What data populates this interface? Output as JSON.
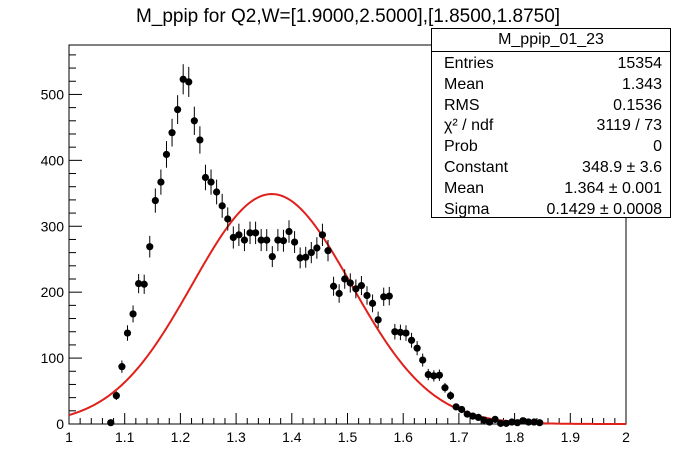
{
  "chart_data": {
    "type": "scatter",
    "title": "M_ppip for Q2,W=[1.9000,2.5000],[1.8500,1.8750]",
    "xlim": [
      1.0,
      2.0
    ],
    "ylim": [
      0,
      575
    ],
    "x_ticks": [
      "1",
      "1.1",
      "1.2",
      "1.3",
      "1.4",
      "1.5",
      "1.6",
      "1.7",
      "1.8",
      "1.9",
      "2"
    ],
    "y_ticks": [
      "0",
      "100",
      "200",
      "300",
      "400",
      "500"
    ],
    "points": [
      [
        1.075,
        2
      ],
      [
        1.085,
        43
      ],
      [
        1.095,
        87
      ],
      [
        1.105,
        138
      ],
      [
        1.115,
        167
      ],
      [
        1.125,
        213
      ],
      [
        1.135,
        212
      ],
      [
        1.145,
        269
      ],
      [
        1.155,
        339
      ],
      [
        1.165,
        367
      ],
      [
        1.175,
        409
      ],
      [
        1.185,
        442
      ],
      [
        1.195,
        477
      ],
      [
        1.205,
        523
      ],
      [
        1.215,
        519
      ],
      [
        1.225,
        460
      ],
      [
        1.235,
        431
      ],
      [
        1.245,
        374
      ],
      [
        1.255,
        367
      ],
      [
        1.265,
        352
      ],
      [
        1.275,
        331
      ],
      [
        1.285,
        311
      ],
      [
        1.295,
        283
      ],
      [
        1.305,
        287
      ],
      [
        1.315,
        279
      ],
      [
        1.325,
        290
      ],
      [
        1.335,
        290
      ],
      [
        1.345,
        279
      ],
      [
        1.355,
        279
      ],
      [
        1.365,
        254
      ],
      [
        1.375,
        279
      ],
      [
        1.385,
        278
      ],
      [
        1.395,
        292
      ],
      [
        1.405,
        276
      ],
      [
        1.415,
        252
      ],
      [
        1.425,
        253
      ],
      [
        1.435,
        260
      ],
      [
        1.445,
        267
      ],
      [
        1.455,
        287
      ],
      [
        1.465,
        263
      ],
      [
        1.475,
        209
      ],
      [
        1.485,
        198
      ],
      [
        1.495,
        220
      ],
      [
        1.505,
        214
      ],
      [
        1.515,
        205
      ],
      [
        1.525,
        210
      ],
      [
        1.535,
        195
      ],
      [
        1.545,
        183
      ],
      [
        1.555,
        158
      ],
      [
        1.565,
        193
      ],
      [
        1.575,
        194
      ],
      [
        1.585,
        140
      ],
      [
        1.595,
        139
      ],
      [
        1.605,
        138
      ],
      [
        1.615,
        127
      ],
      [
        1.625,
        115
      ],
      [
        1.635,
        97
      ],
      [
        1.645,
        75
      ],
      [
        1.655,
        73
      ],
      [
        1.665,
        74
      ],
      [
        1.675,
        55
      ],
      [
        1.685,
        43
      ],
      [
        1.695,
        26
      ],
      [
        1.705,
        22
      ],
      [
        1.715,
        15
      ],
      [
        1.725,
        12
      ],
      [
        1.735,
        10
      ],
      [
        1.745,
        6
      ],
      [
        1.755,
        3
      ],
      [
        1.765,
        7
      ],
      [
        1.775,
        1
      ],
      [
        1.785,
        1
      ],
      [
        1.795,
        3
      ],
      [
        1.805,
        2
      ],
      [
        1.815,
        5
      ],
      [
        1.825,
        3
      ],
      [
        1.835,
        3
      ],
      [
        1.845,
        2
      ]
    ],
    "fit": {
      "type": "gaus",
      "constant": 348.9,
      "mean": 1.364,
      "sigma": 0.1429,
      "color": "#e0201a"
    },
    "grid": false
  },
  "stats": {
    "name": "M_ppip_01_23",
    "rows": [
      {
        "label": "Entries",
        "value": "15354"
      },
      {
        "label": "Mean",
        "value": "1.343"
      },
      {
        "label": "RMS",
        "value": "0.1536"
      },
      {
        "label": "χ² / ndf",
        "value": "3119 / 73"
      },
      {
        "label": "Prob",
        "value": "0"
      },
      {
        "label": "Constant",
        "value": "348.9 ± 3.6"
      },
      {
        "label": "Mean",
        "value": "1.364 ± 0.001"
      },
      {
        "label": "Sigma",
        "value": "0.1429 ± 0.0008"
      }
    ]
  }
}
